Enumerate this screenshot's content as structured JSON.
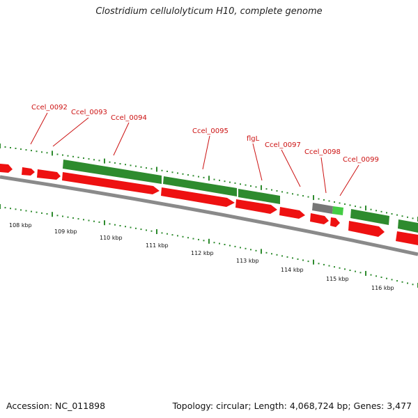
{
  "title": "Clostridium cellulolyticum H10, complete genome",
  "footer": {
    "accession": "Accession: NC_011898",
    "summary": "Topology: circular; Length: 4,068,724 bp; Genes: 3,477"
  },
  "colors": {
    "cds_forward": "#2e8b2e",
    "cds_reverse": "#ee1111",
    "gene_other": "#777777",
    "gene_light": "#44cc44",
    "label": "#cc1111",
    "backbone": "#8a8a8a"
  },
  "ticks": [
    "108 kbp",
    "109 kbp",
    "110 kbp",
    "111 kbp",
    "112 kbp",
    "113 kbp",
    "114 kbp",
    "115 kbp",
    "116 kbp"
  ],
  "gene_labels": [
    "Ccel_0092",
    "Ccel_0093",
    "Ccel_0094",
    "Ccel_0095",
    "flgL",
    "Ccel_0097",
    "Ccel_0098",
    "Ccel_0099"
  ]
}
